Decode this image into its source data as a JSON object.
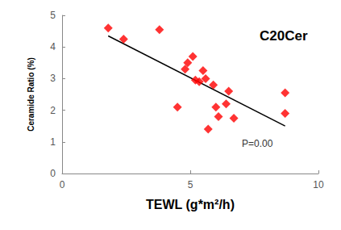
{
  "chart_data": {
    "type": "scatter",
    "x_label": "TEWL (g*m²/h)",
    "y_label": "Ceramide Ratio (%)",
    "annotations": [
      "C20Cer",
      "P=0.00"
    ],
    "x": [
      1.8,
      2.4,
      3.8,
      4.5,
      4.8,
      4.9,
      5.1,
      5.2,
      5.35,
      5.5,
      5.6,
      5.7,
      5.9,
      6.0,
      6.1,
      6.4,
      6.5,
      6.7,
      8.7,
      8.7
    ],
    "values": [
      4.6,
      4.25,
      4.55,
      2.1,
      3.3,
      3.5,
      3.7,
      2.95,
      2.9,
      3.25,
      3.0,
      1.4,
      2.8,
      2.1,
      1.8,
      2.2,
      2.6,
      1.75,
      2.55,
      1.9
    ],
    "color": "#ff0000",
    "marker": "diamond",
    "trend": {
      "x": [
        1.8,
        8.7
      ],
      "values": [
        4.35,
        1.5
      ],
      "color": "#000000"
    },
    "xlim": [
      0,
      10
    ],
    "xticks": [
      0,
      5,
      10
    ],
    "ylim": [
      0,
      5
    ],
    "yticks": [
      0,
      1,
      2,
      3,
      4,
      5
    ],
    "grid": false
  }
}
